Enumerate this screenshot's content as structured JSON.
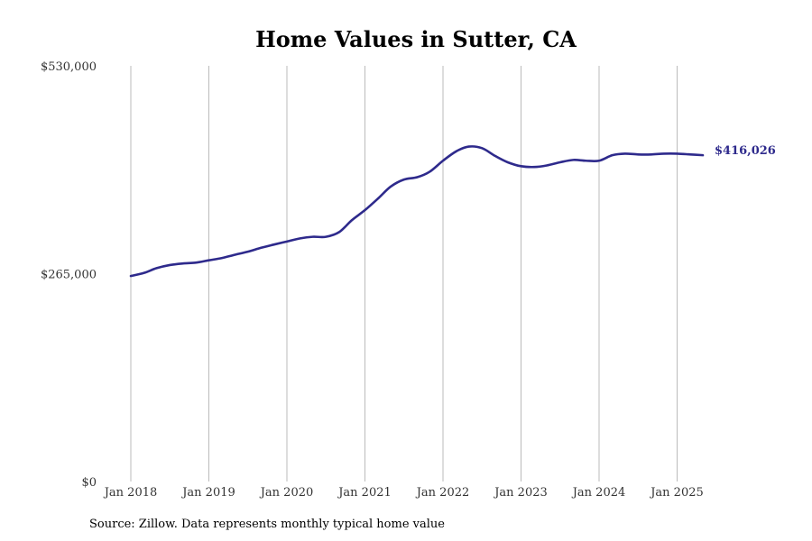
{
  "chart_data": {
    "type": "line",
    "title": "Home Values in Sutter, CA",
    "xlabel": "",
    "ylabel": "",
    "ylim": [
      0,
      530000
    ],
    "yticks": [
      {
        "value": 0,
        "label": "$0"
      },
      {
        "value": 265000,
        "label": "$265,000"
      },
      {
        "value": 530000,
        "label": "$530,000"
      }
    ],
    "xticks": [
      {
        "value": 2018.0,
        "label": "Jan 2018"
      },
      {
        "value": 2019.0,
        "label": "Jan 2019"
      },
      {
        "value": 2020.0,
        "label": "Jan 2020"
      },
      {
        "value": 2021.0,
        "label": "Jan 2021"
      },
      {
        "value": 2022.0,
        "label": "Jan 2022"
      },
      {
        "value": 2023.0,
        "label": "Jan 2023"
      },
      {
        "value": 2024.0,
        "label": "Jan 2024"
      },
      {
        "value": 2025.0,
        "label": "Jan 2025"
      }
    ],
    "xlim": [
      2018.0,
      2025.33
    ],
    "grid": "vertical",
    "legend": "none",
    "line_color": "#2e2a8c",
    "series": [
      {
        "x": [
          2018.0,
          2018.17,
          2018.33,
          2018.5,
          2018.67,
          2018.83,
          2019.0,
          2019.17,
          2019.33,
          2019.5,
          2019.67,
          2019.83,
          2020.0,
          2020.17,
          2020.33,
          2020.5,
          2020.67,
          2020.83,
          2021.0,
          2021.17,
          2021.33,
          2021.5,
          2021.67,
          2021.83,
          2022.0,
          2022.17,
          2022.33,
          2022.5,
          2022.67,
          2022.83,
          2023.0,
          2023.17,
          2023.33,
          2023.5,
          2023.67,
          2023.83,
          2024.0,
          2024.17,
          2024.33,
          2024.5,
          2024.67,
          2024.83,
          2025.0,
          2025.17,
          2025.33
        ],
        "y": [
          262000,
          266000,
          272000,
          276000,
          278000,
          279000,
          282000,
          285000,
          289000,
          293000,
          298000,
          302000,
          306000,
          310000,
          312000,
          312000,
          318000,
          333000,
          346000,
          361000,
          376000,
          385000,
          388000,
          395000,
          409000,
          421000,
          427000,
          425000,
          415000,
          407000,
          402000,
          401000,
          403000,
          407000,
          410000,
          409000,
          409000,
          416000,
          418000,
          417000,
          417000,
          418000,
          418000,
          417000,
          416026
        ]
      }
    ],
    "end_label": "$416,026"
  },
  "source_text": "Source: Zillow. Data represents monthly typical home value"
}
